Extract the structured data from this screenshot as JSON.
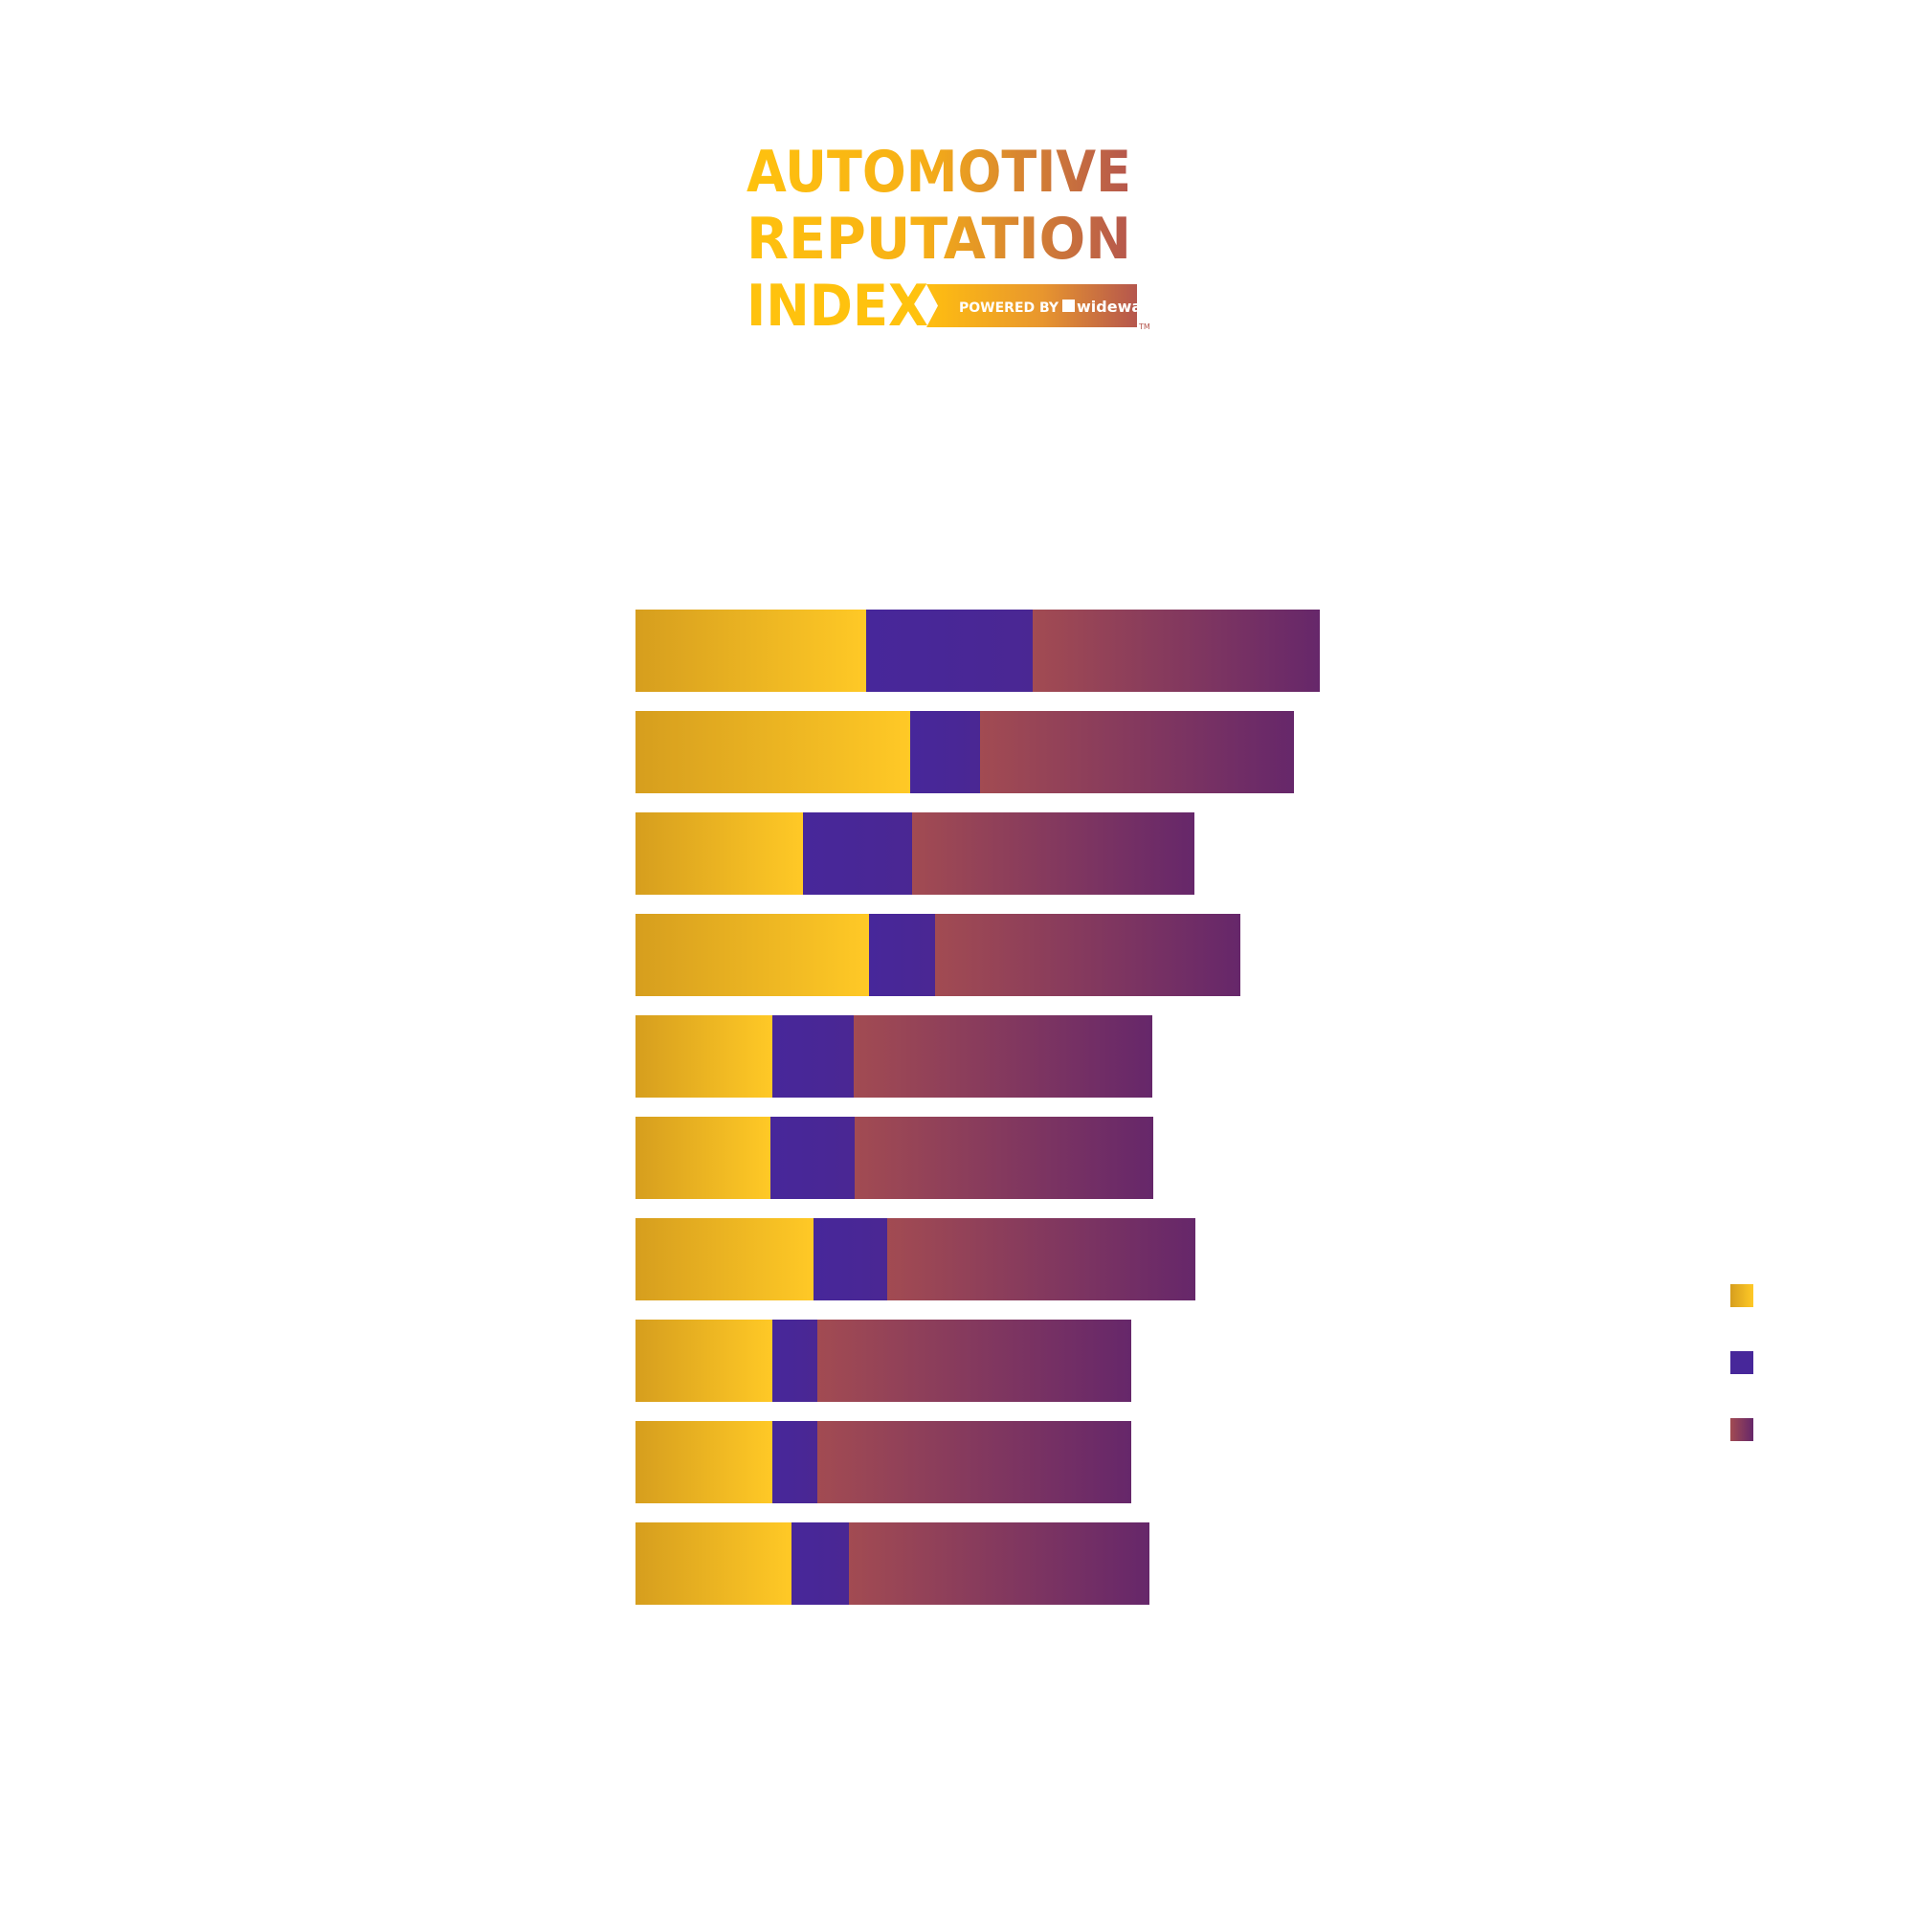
{
  "logo": {
    "line1": "AUTOMOTIVE",
    "line2": "REPUTATION",
    "line3": "INDEX",
    "badge_prefix": "POWERED BY",
    "badge_brand": "widewail",
    "trademark": "TM"
  },
  "colors": {
    "gold_start": "#D69E1E",
    "gold_end": "#FFC926",
    "indigo": "#47279A",
    "maroon_start": "#A24B52",
    "maroon_end": "#66276A",
    "logo_gold": "#FFC20E",
    "logo_copper": "#B5564D"
  },
  "chart_data": {
    "type": "bar",
    "orientation": "horizontal",
    "stacked": true,
    "categories": [
      "",
      "",
      "",
      "",
      "",
      "",
      "",
      "",
      "",
      ""
    ],
    "series": [
      {
        "values": [
          241,
          287,
          175,
          244,
          143,
          141,
          186,
          143,
          143,
          163
        ],
        "color": "gold"
      },
      {
        "values": [
          174,
          73,
          114,
          69,
          85,
          88,
          77,
          47,
          47,
          60
        ],
        "color": "indigo"
      },
      {
        "values": [
          300,
          328,
          295,
          319,
          312,
          312,
          322,
          328,
          328,
          314
        ],
        "color": "maroon"
      }
    ],
    "xlim": [
      0,
      715
    ],
    "grid": false,
    "legend": "right"
  }
}
